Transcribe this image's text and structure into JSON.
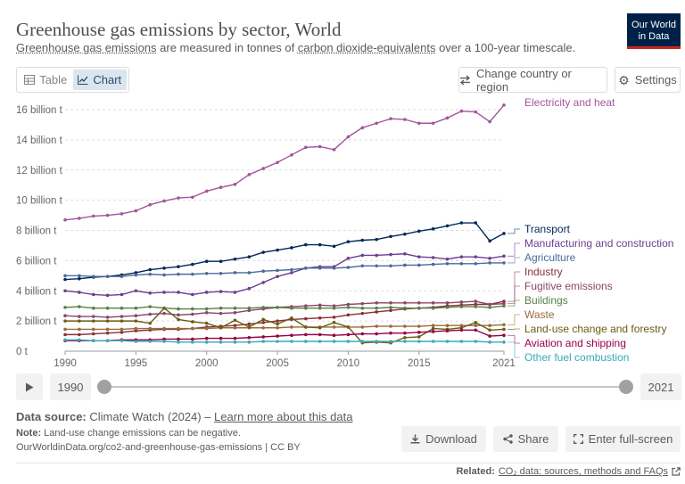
{
  "header": {
    "title": "Greenhouse gas emissions by sector, World",
    "subtitle_link1": "Greenhouse gas emissions",
    "subtitle_mid": " are measured in tonnes of ",
    "subtitle_link2": "carbon dioxide-equivalents",
    "subtitle_end": " over a 100-year timescale.",
    "logo_line1": "Our World",
    "logo_line2": "in Data"
  },
  "tabs": [
    {
      "label": "Table",
      "icon": "table-icon"
    },
    {
      "label": "Chart",
      "icon": "line-chart-icon",
      "active": true
    }
  ],
  "controls": {
    "change_country": "Change country or region",
    "settings": "Settings"
  },
  "timeline": {
    "start_year": "1990",
    "end_year": "2021"
  },
  "footer": {
    "source_label": "Data source:",
    "source_text": " Climate Watch (2024) – ",
    "learn_more": "Learn more about this data",
    "note_label": "Note:",
    "note_text": " Land-use change emissions can be negative.",
    "url": "OurWorldinData.org/co2-and-greenhouse-gas-emissions | CC BY",
    "download": "Download",
    "share": "Share",
    "fullscreen": "Enter full-screen",
    "related_label": "Related:",
    "related_link": "CO₂ data: sources, methods and FAQs"
  },
  "chart_data": {
    "type": "line",
    "title": "Greenhouse gas emissions by sector, World",
    "x": [
      1990,
      1991,
      1992,
      1993,
      1994,
      1995,
      1996,
      1997,
      1998,
      1999,
      2000,
      2001,
      2002,
      2003,
      2004,
      2005,
      2006,
      2007,
      2008,
      2009,
      2010,
      2011,
      2012,
      2013,
      2014,
      2015,
      2016,
      2017,
      2018,
      2019,
      2020,
      2021
    ],
    "xticks": [
      "1990",
      "1995",
      "2000",
      "2005",
      "2010",
      "2015",
      "2021"
    ],
    "yticks": [
      "0 t",
      "2 billion t",
      "4 billion t",
      "6 billion t",
      "8 billion t",
      "10 billion t",
      "12 billion t",
      "14 billion t",
      "16 billion t"
    ],
    "ylim": [
      0,
      16.5
    ],
    "yunit": "billion t",
    "grid": true,
    "series": [
      {
        "name": "Electricity and heat",
        "color": "#a2559c",
        "values": [
          8.7,
          8.8,
          8.95,
          9.0,
          9.1,
          9.3,
          9.7,
          9.95,
          10.15,
          10.2,
          10.6,
          10.85,
          11.05,
          11.7,
          12.1,
          12.5,
          13.0,
          13.5,
          13.55,
          13.35,
          14.2,
          14.8,
          15.1,
          15.4,
          15.35,
          15.1,
          15.1,
          15.45,
          15.9,
          15.85,
          15.2,
          16.3
        ]
      },
      {
        "name": "Transport",
        "color": "#00295b",
        "values": [
          4.75,
          4.8,
          4.9,
          4.95,
          5.05,
          5.2,
          5.4,
          5.5,
          5.6,
          5.75,
          5.95,
          5.95,
          6.1,
          6.25,
          6.55,
          6.7,
          6.85,
          7.05,
          7.05,
          6.95,
          7.25,
          7.35,
          7.4,
          7.6,
          7.75,
          7.95,
          8.1,
          8.3,
          8.5,
          8.5,
          7.3,
          7.8
        ]
      },
      {
        "name": "Manufacturing and construction",
        "color": "#6d3e91",
        "values": [
          4.0,
          3.9,
          3.75,
          3.7,
          3.75,
          4.0,
          3.85,
          3.9,
          3.9,
          3.75,
          3.9,
          3.95,
          3.9,
          4.15,
          4.55,
          4.95,
          5.2,
          5.5,
          5.6,
          5.6,
          6.15,
          6.35,
          6.35,
          6.4,
          6.45,
          6.25,
          6.2,
          6.1,
          6.25,
          6.25,
          6.15,
          6.3
        ]
      },
      {
        "name": "Agriculture",
        "color": "#4c6a9c",
        "values": [
          5.0,
          5.0,
          4.95,
          4.95,
          4.95,
          5.05,
          5.1,
          5.05,
          5.1,
          5.1,
          5.15,
          5.15,
          5.2,
          5.2,
          5.3,
          5.35,
          5.4,
          5.5,
          5.5,
          5.5,
          5.55,
          5.65,
          5.65,
          5.65,
          5.7,
          5.7,
          5.75,
          5.8,
          5.8,
          5.8,
          5.85,
          5.85
        ]
      },
      {
        "name": "Industry",
        "color": "#883039",
        "values": [
          1.1,
          1.1,
          1.15,
          1.2,
          1.25,
          1.35,
          1.4,
          1.45,
          1.45,
          1.5,
          1.6,
          1.65,
          1.7,
          1.8,
          1.9,
          2.0,
          2.1,
          2.15,
          2.2,
          2.25,
          2.4,
          2.5,
          2.6,
          2.7,
          2.8,
          2.85,
          2.9,
          3.0,
          3.05,
          3.1,
          3.1,
          3.3
        ]
      },
      {
        "name": "Fugitive emissions",
        "color": "#8c4569",
        "values": [
          2.35,
          2.3,
          2.3,
          2.25,
          2.3,
          2.35,
          2.45,
          2.5,
          2.4,
          2.45,
          2.55,
          2.5,
          2.55,
          2.7,
          2.8,
          2.9,
          2.95,
          3.0,
          3.05,
          3.0,
          3.1,
          3.15,
          3.2,
          3.2,
          3.2,
          3.2,
          3.2,
          3.2,
          3.25,
          3.3,
          3.1,
          3.15
        ]
      },
      {
        "name": "Buildings",
        "color": "#578145",
        "values": [
          2.9,
          2.95,
          2.85,
          2.85,
          2.85,
          2.85,
          2.95,
          2.85,
          2.8,
          2.8,
          2.8,
          2.85,
          2.85,
          2.85,
          2.9,
          2.9,
          2.85,
          2.85,
          2.85,
          2.85,
          2.9,
          2.85,
          2.85,
          2.9,
          2.85,
          2.85,
          2.85,
          2.9,
          2.95,
          2.95,
          2.9,
          3.0
        ]
      },
      {
        "name": "Waste",
        "color": "#996d39",
        "values": [
          1.45,
          1.45,
          1.45,
          1.45,
          1.45,
          1.5,
          1.5,
          1.5,
          1.5,
          1.5,
          1.5,
          1.55,
          1.55,
          1.55,
          1.55,
          1.55,
          1.6,
          1.6,
          1.6,
          1.6,
          1.6,
          1.6,
          1.65,
          1.65,
          1.65,
          1.65,
          1.7,
          1.7,
          1.7,
          1.7,
          1.7,
          1.75
        ]
      },
      {
        "name": "Land-use change and forestry",
        "color": "#6a5d13",
        "values": [
          2.0,
          2.0,
          2.0,
          2.0,
          2.0,
          2.0,
          1.85,
          2.85,
          2.1,
          1.95,
          1.85,
          1.55,
          2.05,
          1.6,
          2.1,
          1.8,
          2.2,
          1.6,
          1.55,
          1.9,
          1.6,
          0.55,
          0.6,
          0.55,
          0.9,
          0.95,
          1.5,
          1.45,
          1.55,
          1.9,
          1.4,
          1.45
        ]
      },
      {
        "name": "Aviation and shipping",
        "color": "#970046",
        "values": [
          0.7,
          0.7,
          0.7,
          0.7,
          0.75,
          0.75,
          0.75,
          0.8,
          0.8,
          0.8,
          0.85,
          0.85,
          0.85,
          0.9,
          0.95,
          1.0,
          1.05,
          1.1,
          1.1,
          1.05,
          1.1,
          1.15,
          1.15,
          1.2,
          1.2,
          1.25,
          1.3,
          1.35,
          1.4,
          1.4,
          1.0,
          1.05
        ]
      },
      {
        "name": "Other fuel combustion",
        "color": "#38aaba",
        "values": [
          0.75,
          0.75,
          0.7,
          0.7,
          0.7,
          0.65,
          0.65,
          0.65,
          0.6,
          0.6,
          0.6,
          0.6,
          0.6,
          0.6,
          0.65,
          0.65,
          0.65,
          0.65,
          0.65,
          0.65,
          0.65,
          0.65,
          0.65,
          0.65,
          0.65,
          0.65,
          0.65,
          0.65,
          0.65,
          0.65,
          0.6,
          0.6
        ]
      }
    ]
  }
}
